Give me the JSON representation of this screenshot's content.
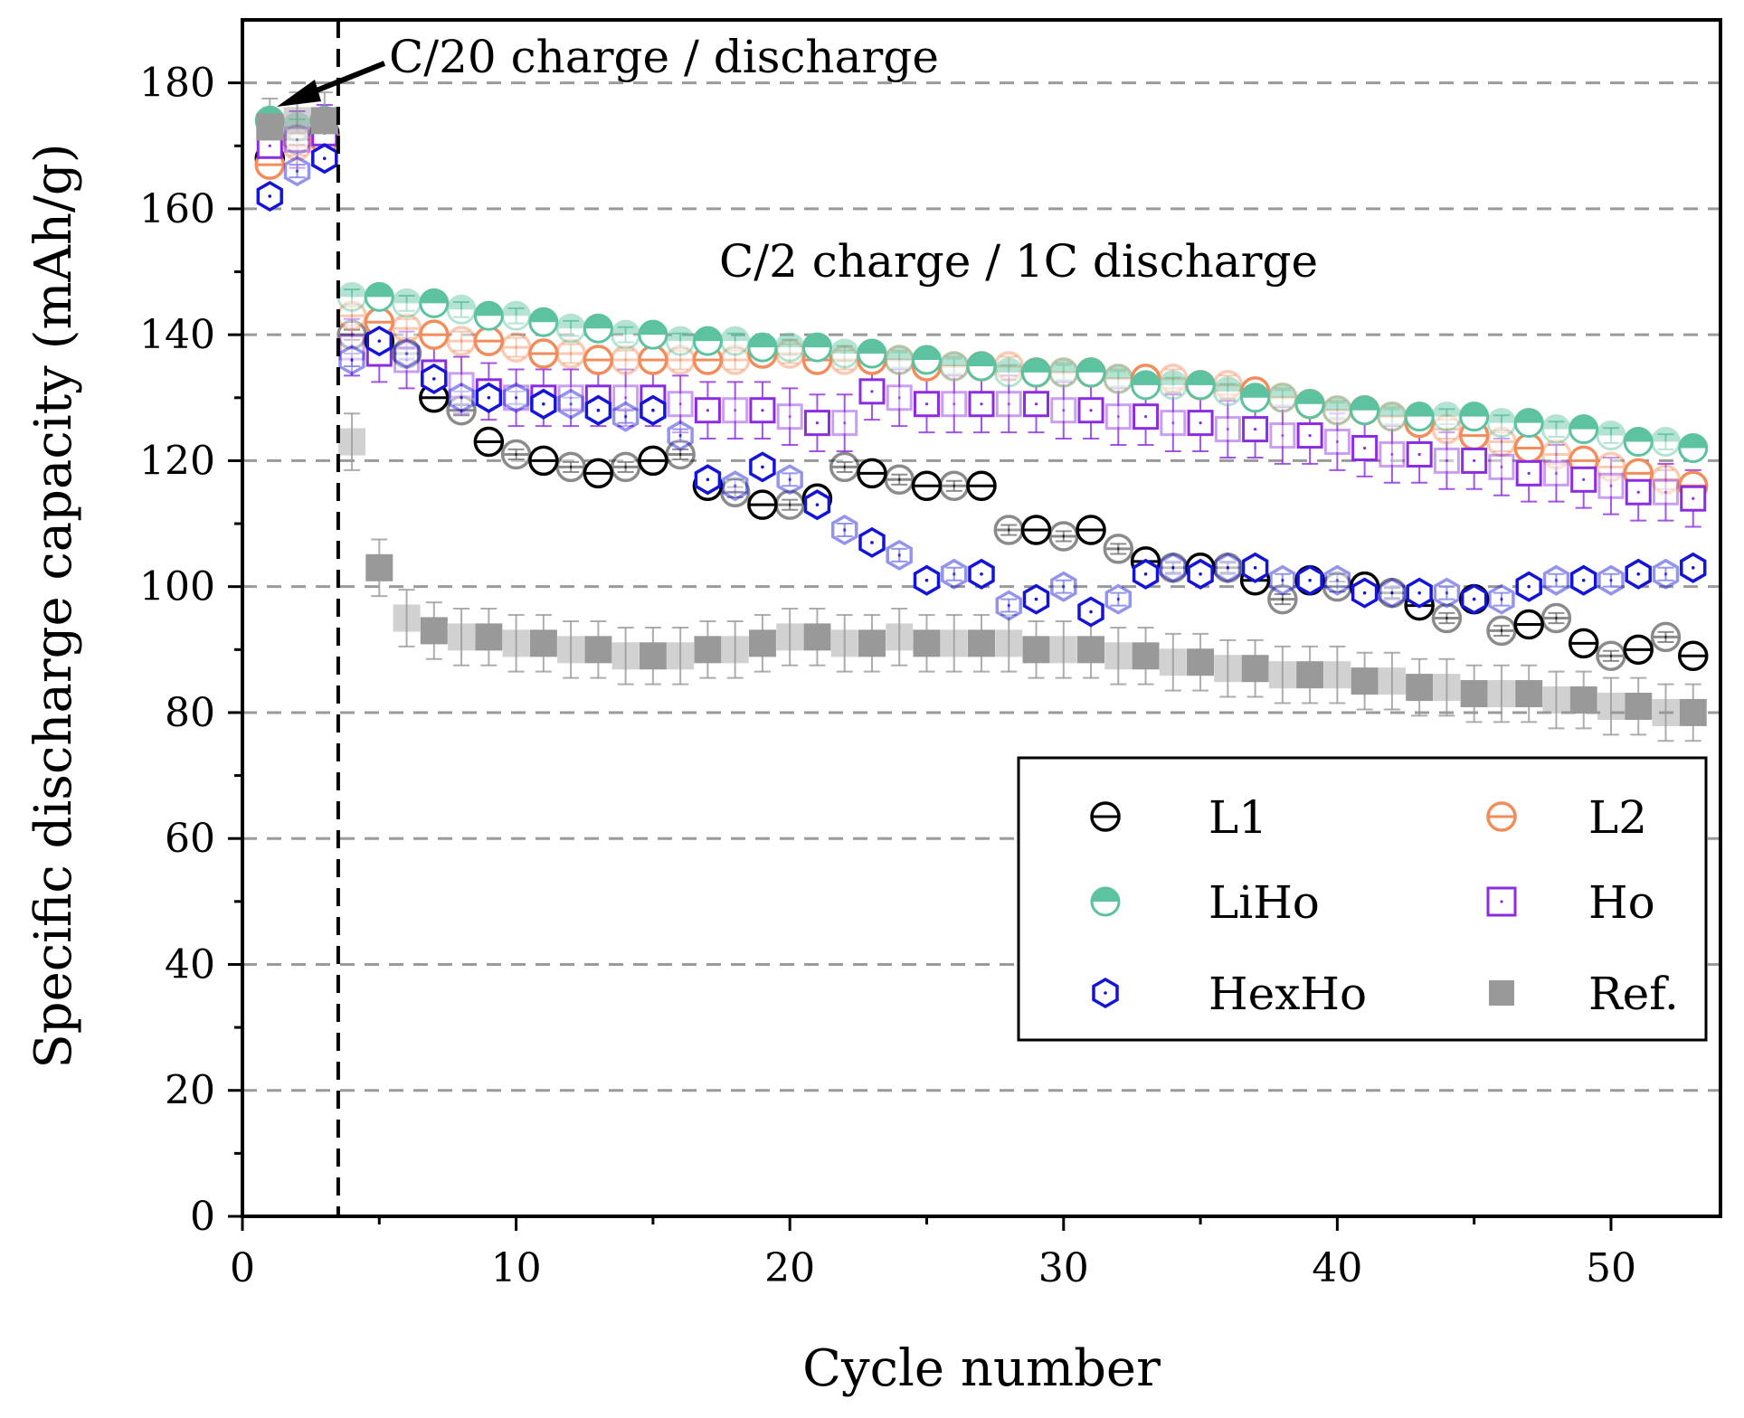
{
  "chart_data": {
    "type": "scatter",
    "title": "",
    "xlabel": "Cycle number",
    "ylabel": "Specific discharge capacity (mAh/g)",
    "xlim": [
      0,
      54
    ],
    "ylim": [
      0,
      190
    ],
    "xticks": [
      0,
      10,
      20,
      30,
      40,
      50
    ],
    "yticks": [
      0,
      20,
      40,
      60,
      80,
      100,
      120,
      140,
      160,
      180
    ],
    "grid": "horizontal dashed",
    "legend_position": "bottom-right",
    "annotations": {
      "c20": "C/20 charge / discharge",
      "c2": "C/2 charge / 1C discharge"
    },
    "divider_x": 3.5,
    "series": [
      {
        "name": "L1",
        "color": "#000000",
        "marker": "circle-line",
        "err": 0.8,
        "values": [
          [
            1,
            168
          ],
          [
            2,
            171
          ],
          [
            3,
            172
          ],
          [
            4,
            140
          ],
          [
            5,
            139
          ],
          [
            6,
            137
          ],
          [
            7,
            130
          ],
          [
            8,
            128
          ],
          [
            9,
            123
          ],
          [
            10,
            121
          ],
          [
            11,
            120
          ],
          [
            12,
            119
          ],
          [
            13,
            118
          ],
          [
            14,
            119
          ],
          [
            15,
            120
          ],
          [
            16,
            121
          ],
          [
            17,
            116
          ],
          [
            18,
            115
          ],
          [
            19,
            113
          ],
          [
            20,
            113
          ],
          [
            21,
            114
          ],
          [
            22,
            119
          ],
          [
            23,
            118
          ],
          [
            24,
            117
          ],
          [
            25,
            116
          ],
          [
            26,
            116
          ],
          [
            27,
            116
          ],
          [
            28,
            109
          ],
          [
            29,
            109
          ],
          [
            30,
            108
          ],
          [
            31,
            109
          ],
          [
            32,
            106
          ],
          [
            33,
            104
          ],
          [
            34,
            103
          ],
          [
            35,
            103
          ],
          [
            36,
            103
          ],
          [
            37,
            101
          ],
          [
            38,
            98
          ],
          [
            39,
            101
          ],
          [
            40,
            100
          ],
          [
            41,
            100
          ],
          [
            42,
            99
          ],
          [
            43,
            97
          ],
          [
            44,
            95
          ],
          [
            45,
            98
          ],
          [
            46,
            93
          ],
          [
            47,
            94
          ],
          [
            48,
            95
          ],
          [
            49,
            91
          ],
          [
            50,
            89
          ],
          [
            51,
            90
          ],
          [
            52,
            92
          ],
          [
            53,
            89
          ]
        ]
      },
      {
        "name": "L2",
        "color": "#F28C5A",
        "marker": "circle-line",
        "err": 1.5,
        "values": [
          [
            1,
            167
          ],
          [
            2,
            170
          ],
          [
            3,
            171
          ],
          [
            4,
            143
          ],
          [
            5,
            142
          ],
          [
            6,
            141
          ],
          [
            7,
            140
          ],
          [
            8,
            139
          ],
          [
            9,
            139
          ],
          [
            10,
            138
          ],
          [
            11,
            137
          ],
          [
            12,
            137
          ],
          [
            13,
            136
          ],
          [
            14,
            136
          ],
          [
            15,
            136
          ],
          [
            16,
            136
          ],
          [
            17,
            136
          ],
          [
            18,
            136
          ],
          [
            19,
            137
          ],
          [
            20,
            137
          ],
          [
            21,
            136
          ],
          [
            22,
            136
          ],
          [
            23,
            136
          ],
          [
            24,
            136
          ],
          [
            25,
            135
          ],
          [
            26,
            135
          ],
          [
            27,
            135
          ],
          [
            28,
            135
          ],
          [
            29,
            134
          ],
          [
            30,
            134
          ],
          [
            31,
            134
          ],
          [
            32,
            133
          ],
          [
            33,
            133
          ],
          [
            34,
            133
          ],
          [
            35,
            132
          ],
          [
            36,
            132
          ],
          [
            37,
            131
          ],
          [
            38,
            130
          ],
          [
            39,
            129
          ],
          [
            40,
            128
          ],
          [
            41,
            128
          ],
          [
            42,
            127
          ],
          [
            43,
            126
          ],
          [
            44,
            125
          ],
          [
            45,
            124
          ],
          [
            46,
            123
          ],
          [
            47,
            122
          ],
          [
            48,
            121
          ],
          [
            49,
            120
          ],
          [
            50,
            119
          ],
          [
            51,
            118
          ],
          [
            52,
            117
          ],
          [
            53,
            116
          ]
        ]
      },
      {
        "name": "LiHo",
        "color": "#5CC2A0",
        "marker": "half-circle",
        "err": 1.2,
        "values": [
          [
            1,
            174
          ],
          [
            2,
            173
          ],
          [
            3,
            174
          ],
          [
            4,
            146
          ],
          [
            5,
            146
          ],
          [
            6,
            145
          ],
          [
            7,
            145
          ],
          [
            8,
            144
          ],
          [
            9,
            143
          ],
          [
            10,
            143
          ],
          [
            11,
            142
          ],
          [
            12,
            141
          ],
          [
            13,
            141
          ],
          [
            14,
            140
          ],
          [
            15,
            140
          ],
          [
            16,
            139
          ],
          [
            17,
            139
          ],
          [
            18,
            139
          ],
          [
            19,
            138
          ],
          [
            20,
            138
          ],
          [
            21,
            138
          ],
          [
            22,
            137
          ],
          [
            23,
            137
          ],
          [
            24,
            136
          ],
          [
            25,
            136
          ],
          [
            26,
            135
          ],
          [
            27,
            135
          ],
          [
            28,
            134
          ],
          [
            29,
            134
          ],
          [
            30,
            134
          ],
          [
            31,
            134
          ],
          [
            32,
            133
          ],
          [
            33,
            132
          ],
          [
            34,
            132
          ],
          [
            35,
            132
          ],
          [
            36,
            131
          ],
          [
            37,
            130
          ],
          [
            38,
            130
          ],
          [
            39,
            129
          ],
          [
            40,
            128
          ],
          [
            41,
            128
          ],
          [
            42,
            127
          ],
          [
            43,
            127
          ],
          [
            44,
            127
          ],
          [
            45,
            127
          ],
          [
            46,
            126
          ],
          [
            47,
            126
          ],
          [
            48,
            125
          ],
          [
            49,
            125
          ],
          [
            50,
            124
          ],
          [
            51,
            123
          ],
          [
            52,
            123
          ],
          [
            53,
            122
          ]
        ]
      },
      {
        "name": "Ho",
        "color": "#8B2BE2",
        "marker": "square-open",
        "err": 4.5,
        "values": [
          [
            1,
            170
          ],
          [
            2,
            171
          ],
          [
            3,
            172
          ],
          [
            4,
            138
          ],
          [
            5,
            137
          ],
          [
            6,
            136
          ],
          [
            7,
            134
          ],
          [
            8,
            132
          ],
          [
            9,
            131
          ],
          [
            10,
            130
          ],
          [
            11,
            130
          ],
          [
            12,
            130
          ],
          [
            13,
            130
          ],
          [
            14,
            130
          ],
          [
            15,
            130
          ],
          [
            16,
            129
          ],
          [
            17,
            128
          ],
          [
            18,
            128
          ],
          [
            19,
            128
          ],
          [
            20,
            127
          ],
          [
            21,
            126
          ],
          [
            22,
            126
          ],
          [
            23,
            131
          ],
          [
            24,
            130
          ],
          [
            25,
            129
          ],
          [
            26,
            129
          ],
          [
            27,
            129
          ],
          [
            28,
            129
          ],
          [
            29,
            129
          ],
          [
            30,
            128
          ],
          [
            31,
            128
          ],
          [
            32,
            127
          ],
          [
            33,
            127
          ],
          [
            34,
            126
          ],
          [
            35,
            126
          ],
          [
            36,
            125
          ],
          [
            37,
            125
          ],
          [
            38,
            124
          ],
          [
            39,
            124
          ],
          [
            40,
            123
          ],
          [
            41,
            122
          ],
          [
            42,
            121
          ],
          [
            43,
            121
          ],
          [
            44,
            120
          ],
          [
            45,
            120
          ],
          [
            46,
            119
          ],
          [
            47,
            118
          ],
          [
            48,
            118
          ],
          [
            49,
            117
          ],
          [
            50,
            116
          ],
          [
            51,
            115
          ],
          [
            52,
            115
          ],
          [
            53,
            114
          ]
        ]
      },
      {
        "name": "HexHo",
        "color": "#1414D8",
        "marker": "hexagon",
        "err": 1.0,
        "values": [
          [
            1,
            162
          ],
          [
            2,
            166
          ],
          [
            3,
            168
          ],
          [
            4,
            136
          ],
          [
            5,
            139
          ],
          [
            6,
            137
          ],
          [
            7,
            133
          ],
          [
            8,
            130
          ],
          [
            9,
            130
          ],
          [
            10,
            130
          ],
          [
            11,
            129
          ],
          [
            12,
            129
          ],
          [
            13,
            128
          ],
          [
            14,
            127
          ],
          [
            15,
            128
          ],
          [
            16,
            124
          ],
          [
            17,
            117
          ],
          [
            18,
            116
          ],
          [
            19,
            119
          ],
          [
            20,
            117
          ],
          [
            21,
            113
          ],
          [
            22,
            109
          ],
          [
            23,
            107
          ],
          [
            24,
            105
          ],
          [
            25,
            101
          ],
          [
            26,
            102
          ],
          [
            27,
            102
          ],
          [
            28,
            97
          ],
          [
            29,
            98
          ],
          [
            30,
            100
          ],
          [
            31,
            96
          ],
          [
            32,
            98
          ],
          [
            33,
            102
          ],
          [
            34,
            103
          ],
          [
            35,
            102
          ],
          [
            36,
            103
          ],
          [
            37,
            103
          ],
          [
            38,
            101
          ],
          [
            39,
            101
          ],
          [
            40,
            101
          ],
          [
            41,
            99
          ],
          [
            42,
            99
          ],
          [
            43,
            99
          ],
          [
            44,
            99
          ],
          [
            45,
            98
          ],
          [
            46,
            98
          ],
          [
            47,
            100
          ],
          [
            48,
            101
          ],
          [
            49,
            101
          ],
          [
            50,
            101
          ],
          [
            51,
            102
          ],
          [
            52,
            102
          ],
          [
            53,
            103
          ]
        ]
      },
      {
        "name": "Ref.",
        "color": "#999999",
        "marker": "square-filled",
        "err": 4.5,
        "values": [
          [
            1,
            173
          ],
          [
            2,
            174
          ],
          [
            3,
            174
          ],
          [
            4,
            123
          ],
          [
            5,
            103
          ],
          [
            6,
            95
          ],
          [
            7,
            93
          ],
          [
            8,
            92
          ],
          [
            9,
            92
          ],
          [
            10,
            91
          ],
          [
            11,
            91
          ],
          [
            12,
            90
          ],
          [
            13,
            90
          ],
          [
            14,
            89
          ],
          [
            15,
            89
          ],
          [
            16,
            89
          ],
          [
            17,
            90
          ],
          [
            18,
            90
          ],
          [
            19,
            91
          ],
          [
            20,
            92
          ],
          [
            21,
            92
          ],
          [
            22,
            91
          ],
          [
            23,
            91
          ],
          [
            24,
            92
          ],
          [
            25,
            91
          ],
          [
            26,
            91
          ],
          [
            27,
            91
          ],
          [
            28,
            91
          ],
          [
            29,
            90
          ],
          [
            30,
            90
          ],
          [
            31,
            90
          ],
          [
            32,
            89
          ],
          [
            33,
            89
          ],
          [
            34,
            88
          ],
          [
            35,
            88
          ],
          [
            36,
            87
          ],
          [
            37,
            87
          ],
          [
            38,
            86
          ],
          [
            39,
            86
          ],
          [
            40,
            86
          ],
          [
            41,
            85
          ],
          [
            42,
            85
          ],
          [
            43,
            84
          ],
          [
            44,
            84
          ],
          [
            45,
            83
          ],
          [
            46,
            83
          ],
          [
            47,
            83
          ],
          [
            48,
            82
          ],
          [
            49,
            82
          ],
          [
            50,
            81
          ],
          [
            51,
            81
          ],
          [
            52,
            80
          ],
          [
            53,
            80
          ]
        ]
      }
    ]
  }
}
